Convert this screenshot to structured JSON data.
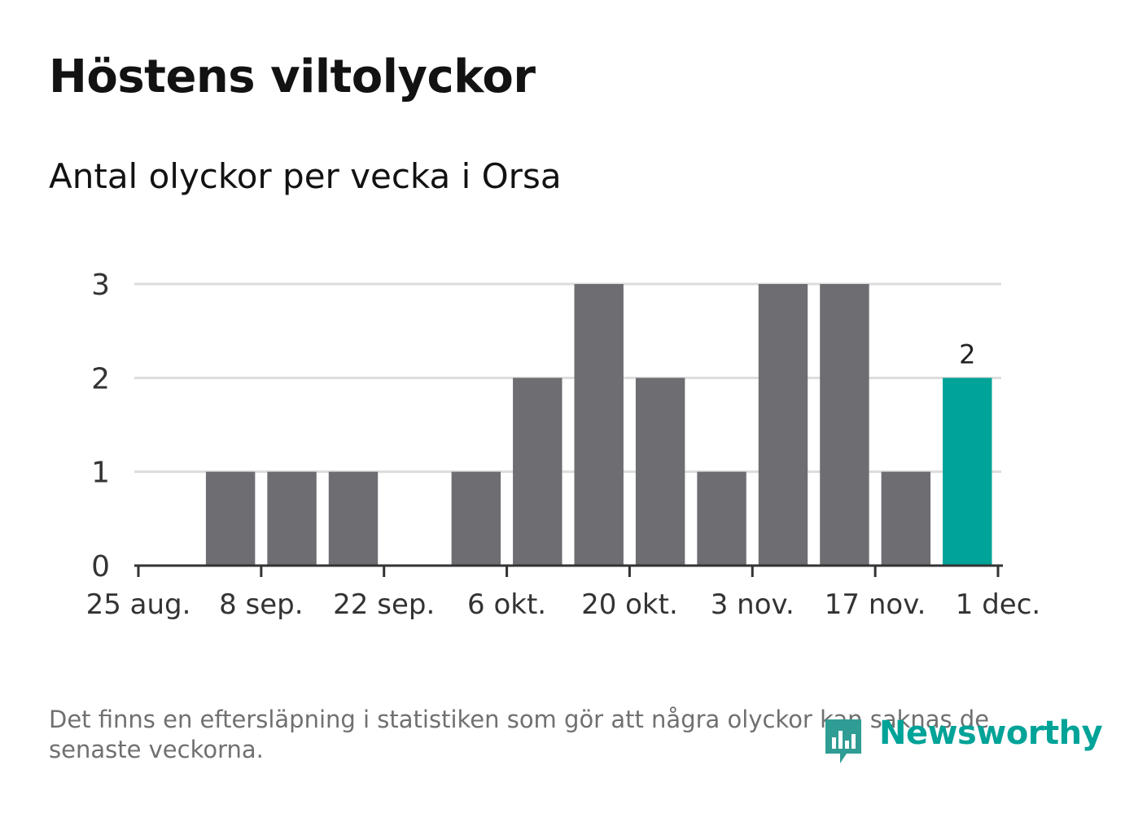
{
  "title": "Höstens viltolyckor",
  "subtitle": "Antal olyckor per vecka i Orsa",
  "note": "Det finns en eftersläpning i statistiken som gör att några olyckor kan saknas de senaste veckorna.",
  "brand": {
    "name": "Newsworthy",
    "icon": "newsworthy-logo-icon",
    "color": "#00a398"
  },
  "chart_data": {
    "type": "bar",
    "x_axis_ticks": [
      "25 aug.",
      "8 sep.",
      "22 sep.",
      "6 okt.",
      "20 okt.",
      "3 nov.",
      "17 nov.",
      "1 dec."
    ],
    "x_axis_tick_dates": [
      "2025-08-25",
      "2025-09-08",
      "2025-09-22",
      "2025-10-06",
      "2025-10-20",
      "2025-11-03",
      "2025-11-17",
      "2025-12-01"
    ],
    "week_starts": [
      "2025-08-25",
      "2025-09-01",
      "2025-09-08",
      "2025-09-15",
      "2025-09-22",
      "2025-09-29",
      "2025-10-06",
      "2025-10-13",
      "2025-10-20",
      "2025-10-27",
      "2025-11-03",
      "2025-11-10",
      "2025-11-17",
      "2025-11-24"
    ],
    "values": [
      0,
      1,
      1,
      1,
      0,
      1,
      2,
      3,
      2,
      1,
      3,
      3,
      1,
      2
    ],
    "highlight": {
      "index": 13,
      "label": "2",
      "color": "#00a398"
    },
    "bar_color": "#6e6d72",
    "y_ticks": [
      0,
      1,
      2,
      3
    ],
    "ylim": [
      0,
      3
    ],
    "grid": true
  }
}
